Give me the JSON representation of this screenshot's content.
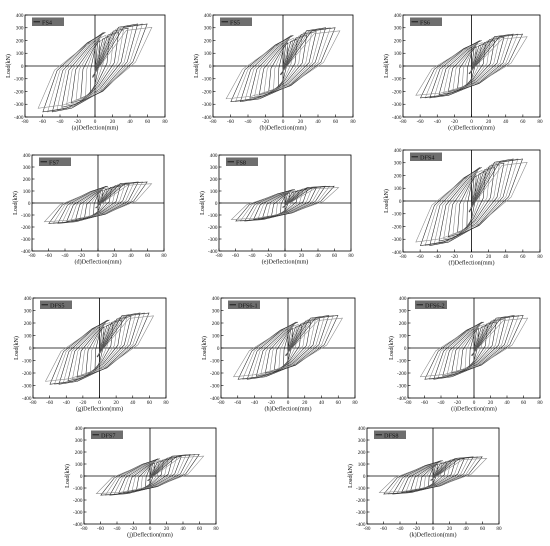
{
  "chart_data": [
    {
      "type": "line",
      "label": "FS4",
      "caption": "(a)Deflection(mm)",
      "ylabel": "Load(kN)",
      "xlim": [
        -80,
        80
      ],
      "ylim": [
        -400,
        400
      ],
      "peak_pos": 330,
      "peak_neg": -360,
      "max_defl": 65,
      "xticks": [
        "-80",
        "-60",
        "-40",
        "-20",
        "0",
        "20",
        "40",
        "60",
        "80"
      ],
      "yticks": [
        "400",
        "300",
        "200",
        "100",
        "0",
        "-100",
        "-200",
        "-300",
        "-400"
      ]
    },
    {
      "type": "line",
      "label": "FS5",
      "caption": "(b)Deflection(mm)",
      "ylabel": "Load(kN)",
      "xlim": [
        -80,
        80
      ],
      "ylim": [
        -400,
        400
      ],
      "peak_pos": 300,
      "peak_neg": -280,
      "max_defl": 65,
      "xticks": [
        "-80",
        "-60",
        "-40",
        "-20",
        "0",
        "20",
        "40",
        "60",
        "80"
      ],
      "yticks": [
        "400",
        "300",
        "200",
        "100",
        "0",
        "-100",
        "-200",
        "-300",
        "-400"
      ]
    },
    {
      "type": "line",
      "label": "FS6",
      "caption": "(c)Deflection(mm)",
      "ylabel": "Load(kN)",
      "xlim": [
        -80,
        80
      ],
      "ylim": [
        -400,
        400
      ],
      "peak_pos": 250,
      "peak_neg": -250,
      "max_defl": 65,
      "xticks": [
        "-80",
        "-60",
        "-40",
        "-20",
        "0",
        "20",
        "40",
        "60",
        "80"
      ],
      "yticks": [
        "400",
        "300",
        "200",
        "100",
        "0",
        "-100",
        "-200",
        "-300",
        "-400"
      ]
    },
    {
      "type": "line",
      "label": "FS7",
      "caption": "(d)Deflection(mm)",
      "ylabel": "Load(kN)",
      "xlim": [
        -80,
        80
      ],
      "ylim": [
        -400,
        400
      ],
      "peak_pos": 175,
      "peak_neg": -170,
      "max_defl": 65,
      "xticks": [
        "-80",
        "-60",
        "-40",
        "-20",
        "0",
        "20",
        "40",
        "60",
        "80"
      ],
      "yticks": [
        "400",
        "300",
        "200",
        "100",
        "0",
        "-100",
        "-200",
        "-300",
        "-400"
      ]
    },
    {
      "type": "line",
      "label": "FS8",
      "caption": "(e)Deflection(mm)",
      "ylabel": "Load(kN)",
      "xlim": [
        -80,
        80
      ],
      "ylim": [
        -400,
        400
      ],
      "peak_pos": 140,
      "peak_neg": -150,
      "max_defl": 65,
      "xticks": [
        "-80",
        "-60",
        "-40",
        "-20",
        "0",
        "20",
        "40",
        "60",
        "80"
      ],
      "yticks": [
        "400",
        "300",
        "200",
        "100",
        "0",
        "-100",
        "-200",
        "-300",
        "-400"
      ]
    },
    {
      "type": "line",
      "label": "DFS4",
      "caption": "(f)Deflection(mm)",
      "ylabel": "Load(kN)",
      "xlim": [
        -80,
        80
      ],
      "ylim": [
        -400,
        400
      ],
      "peak_pos": 330,
      "peak_neg": -350,
      "max_defl": 65,
      "xticks": [
        "-80",
        "-60",
        "-40",
        "-20",
        "0",
        "20",
        "40",
        "60",
        "80"
      ],
      "yticks": [
        "400",
        "300",
        "200",
        "100",
        "0",
        "-100",
        "-200",
        "-300",
        "-400"
      ]
    },
    {
      "type": "line",
      "label": "DFS5",
      "caption": "(g)Deflection(mm)",
      "ylabel": "Load(kN)",
      "xlim": [
        -80,
        80
      ],
      "ylim": [
        -400,
        400
      ],
      "peak_pos": 280,
      "peak_neg": -290,
      "max_defl": 65,
      "xticks": [
        "-80",
        "-60",
        "-40",
        "-20",
        "0",
        "20",
        "40",
        "60",
        "80"
      ],
      "yticks": [
        "400",
        "300",
        "200",
        "100",
        "0",
        "-100",
        "-200",
        "-300",
        "-400"
      ]
    },
    {
      "type": "line",
      "label": "DFS6-1",
      "caption": "(h)Deflection(mm)",
      "ylabel": "Load(kN)",
      "xlim": [
        -80,
        80
      ],
      "ylim": [
        -400,
        400
      ],
      "peak_pos": 260,
      "peak_neg": -250,
      "max_defl": 65,
      "xticks": [
        "-80",
        "-60",
        "-40",
        "-20",
        "0",
        "20",
        "40",
        "60",
        "80"
      ],
      "yticks": [
        "400",
        "300",
        "200",
        "100",
        "0",
        "-100",
        "-200",
        "-300",
        "-400"
      ]
    },
    {
      "type": "line",
      "label": "DFS6-2",
      "caption": "(i)Deflection(mm)",
      "ylabel": "Load(kN)",
      "xlim": [
        -80,
        80
      ],
      "ylim": [
        -400,
        400
      ],
      "peak_pos": 260,
      "peak_neg": -250,
      "max_defl": 65,
      "xticks": [
        "-80",
        "-60",
        "-40",
        "-20",
        "0",
        "20",
        "40",
        "60",
        "80"
      ],
      "yticks": [
        "400",
        "300",
        "200",
        "100",
        "0",
        "-100",
        "-200",
        "-300",
        "-400"
      ]
    },
    {
      "type": "line",
      "label": "DFS7",
      "caption": "(j)Deflection(mm)",
      "ylabel": "Load(kN)",
      "xlim": [
        -80,
        80
      ],
      "ylim": [
        -400,
        400
      ],
      "peak_pos": 180,
      "peak_neg": -160,
      "max_defl": 65,
      "xticks": [
        "-80",
        "-60",
        "-40",
        "-20",
        "0",
        "20",
        "40",
        "60",
        "80"
      ],
      "yticks": [
        "400",
        "300",
        "200",
        "100",
        "0",
        "-100",
        "-200",
        "-300",
        "-400"
      ]
    },
    {
      "type": "line",
      "label": "DFS8",
      "caption": "(k)Deflection(mm)",
      "ylabel": "Load(kN)",
      "xlim": [
        -80,
        80
      ],
      "ylim": [
        -400,
        400
      ],
      "peak_pos": 160,
      "peak_neg": -150,
      "max_defl": 65,
      "xticks": [
        "-80",
        "-60",
        "-40",
        "-20",
        "0",
        "20",
        "40",
        "60",
        "80"
      ],
      "yticks": [
        "400",
        "300",
        "200",
        "100",
        "0",
        "-100",
        "-200",
        "-300",
        "-400"
      ]
    }
  ]
}
